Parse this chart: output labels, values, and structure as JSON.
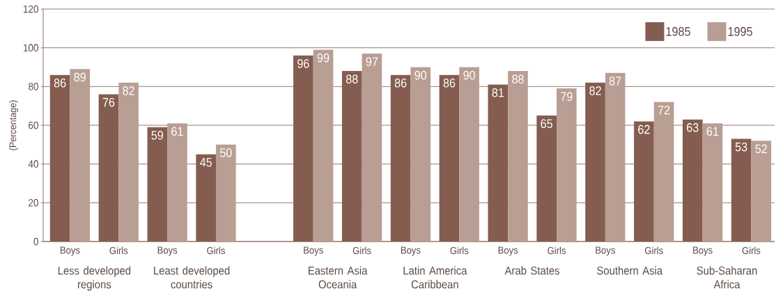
{
  "chart_data": {
    "type": "bar",
    "ylabel": "(Percentage)",
    "categories": [
      "Boys",
      "Girls",
      "Boys",
      "Girls",
      null,
      "Boys",
      "Girls",
      "Boys",
      "Girls",
      "Boys",
      "Girls",
      "Boys",
      "Girls",
      "Boys",
      "Girls"
    ],
    "series": [
      {
        "name": "1985",
        "color": "#845d50",
        "values": [
          86,
          76,
          59,
          45,
          null,
          96,
          88,
          86,
          86,
          81,
          65,
          82,
          62,
          63,
          53
        ]
      },
      {
        "name": "1995",
        "color": "#b99e93",
        "values": [
          89,
          82,
          61,
          50,
          null,
          99,
          97,
          90,
          90,
          88,
          79,
          87,
          72,
          61,
          52
        ]
      }
    ],
    "ylim": [
      0,
      120
    ],
    "yticks": [
      0,
      20,
      40,
      60,
      80,
      100,
      120
    ],
    "grid": "y",
    "legend": "top right",
    "data_labels": true,
    "annotations": [
      "Less developed regions",
      "Least developed countries",
      "Eastern Asia Oceania",
      "Latin America Caribbean",
      "Arab States",
      "Southern Asia",
      "Sub-Saharan Africa"
    ]
  }
}
